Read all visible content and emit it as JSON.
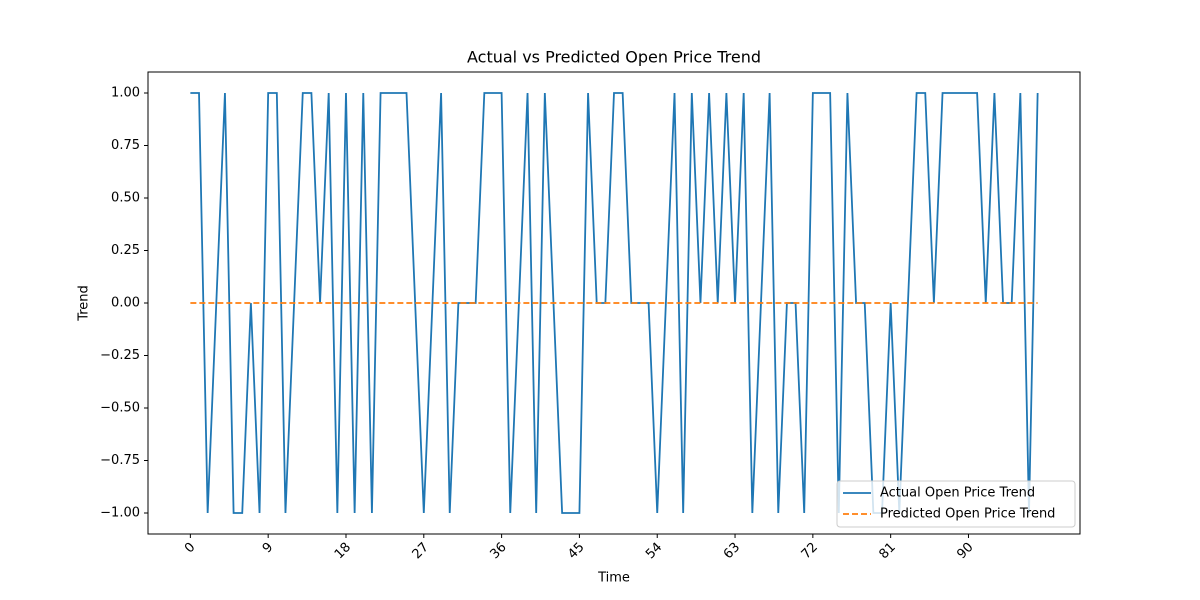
{
  "chart_data": {
    "type": "line",
    "title": "Actual vs Predicted Open Price Trend",
    "xlabel": "Time",
    "ylabel": "Trend",
    "x": [
      0,
      1,
      2,
      3,
      4,
      5,
      6,
      7,
      8,
      9,
      10,
      11,
      12,
      13,
      14,
      15,
      16,
      17,
      18,
      19,
      20,
      21,
      22,
      23,
      24,
      25,
      26,
      27,
      28,
      29,
      30,
      31,
      32,
      33,
      34,
      35,
      36,
      37,
      38,
      39,
      40,
      41,
      42,
      43,
      44,
      45,
      46,
      47,
      48,
      49,
      50,
      51,
      52,
      53,
      54,
      55,
      56,
      57,
      58,
      59,
      60,
      61,
      62,
      63,
      64,
      65,
      66,
      67,
      68,
      69,
      70,
      71,
      72,
      73,
      74,
      75,
      76,
      77,
      78,
      79,
      80,
      81,
      82,
      83,
      84,
      85,
      86,
      87,
      88,
      89,
      90,
      91,
      92,
      93,
      94,
      95,
      96,
      97,
      98
    ],
    "series": [
      {
        "name": "Actual Open Price Trend",
        "color": "#1f77b4",
        "linestyle": "solid",
        "values": [
          1,
          1,
          -1,
          0,
          1,
          -1,
          -1,
          0,
          -1,
          1,
          1,
          -1,
          0,
          1,
          1,
          0,
          1,
          -1,
          1,
          -1,
          1,
          -1,
          1,
          1,
          1,
          1,
          0,
          -1,
          0,
          1,
          -1,
          0,
          0,
          0,
          1,
          1,
          1,
          -1,
          0,
          1,
          -1,
          1,
          0,
          -1,
          -1,
          -1,
          1,
          0,
          0,
          1,
          1,
          0,
          0,
          0,
          -1,
          0,
          1,
          -1,
          1,
          0,
          1,
          0,
          1,
          0,
          1,
          -1,
          0,
          1,
          -1,
          0,
          0,
          -1,
          1,
          1,
          1,
          -1,
          1,
          0,
          0,
          -1,
          -1,
          0,
          -1,
          0,
          1,
          1,
          0,
          1,
          1,
          1,
          1,
          1,
          0,
          1,
          0,
          0,
          1,
          -1,
          1
        ]
      },
      {
        "name": "Predicted Open Price Trend",
        "color": "#ff7f0e",
        "linestyle": "dashed",
        "values": [
          0,
          0,
          0,
          0,
          0,
          0,
          0,
          0,
          0,
          0,
          0,
          0,
          0,
          0,
          0,
          0,
          0,
          0,
          0,
          0,
          0,
          0,
          0,
          0,
          0,
          0,
          0,
          0,
          0,
          0,
          0,
          0,
          0,
          0,
          0,
          0,
          0,
          0,
          0,
          0,
          0,
          0,
          0,
          0,
          0,
          0,
          0,
          0,
          0,
          0,
          0,
          0,
          0,
          0,
          0,
          0,
          0,
          0,
          0,
          0,
          0,
          0,
          0,
          0,
          0,
          0,
          0,
          0,
          0,
          0,
          0,
          0,
          0,
          0,
          0,
          0,
          0,
          0,
          0,
          0,
          0,
          0,
          0,
          0,
          0,
          0,
          0,
          0,
          0,
          0,
          0,
          0,
          0,
          0,
          0,
          0,
          0,
          0,
          0
        ]
      }
    ],
    "xlim": [
      -4.9,
      102.9
    ],
    "xticks": [
      0,
      9,
      18,
      27,
      36,
      45,
      54,
      63,
      72,
      81,
      90
    ],
    "ylim": [
      -1.1,
      1.1
    ],
    "yticks": [
      {
        "value": -1,
        "label": "−1.00"
      },
      {
        "value": -0.75,
        "label": "−0.75"
      },
      {
        "value": -0.5,
        "label": "−0.50"
      },
      {
        "value": -0.25,
        "label": "−0.25"
      },
      {
        "value": 0,
        "label": "0.00"
      },
      {
        "value": 0.25,
        "label": "0.25"
      },
      {
        "value": 0.5,
        "label": "0.50"
      },
      {
        "value": 0.75,
        "label": "0.75"
      },
      {
        "value": 1,
        "label": "1.00"
      }
    ],
    "legend": "lower right"
  }
}
